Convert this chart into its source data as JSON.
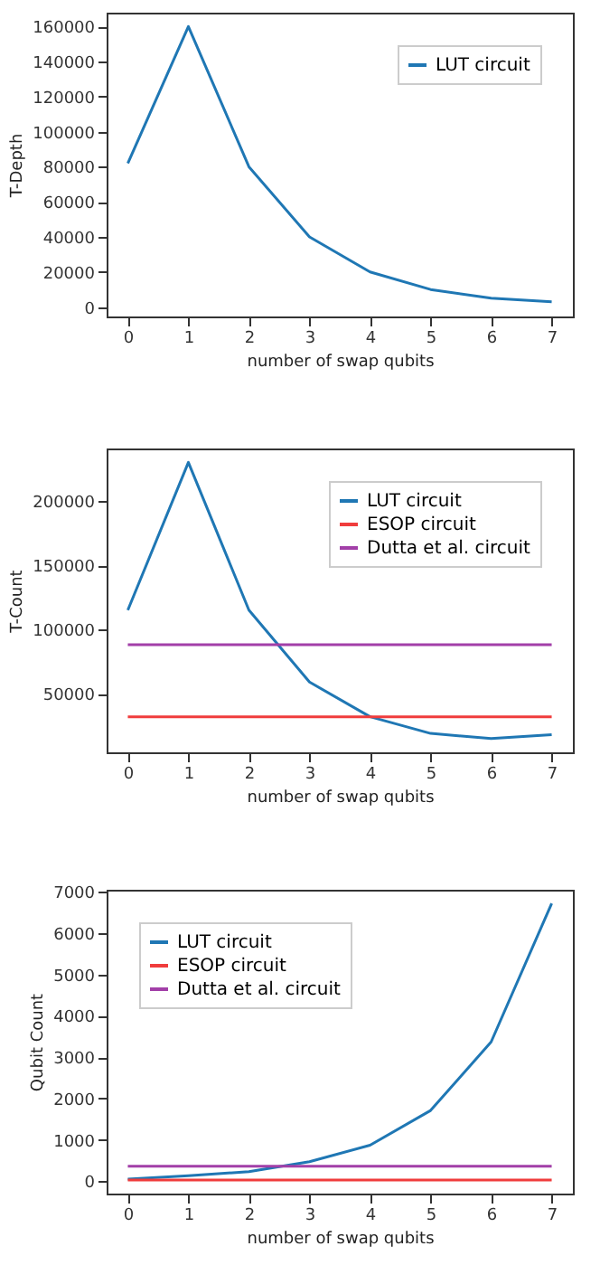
{
  "chart_data": [
    {
      "type": "line",
      "xlabel": "number of swap qubits",
      "ylabel": "T-Depth",
      "x": [
        0,
        1,
        2,
        3,
        4,
        5,
        6,
        7
      ],
      "xlim": [
        -0.35,
        7.35
      ],
      "xticks": [
        0,
        1,
        2,
        3,
        4,
        5,
        6,
        7
      ],
      "ylim": [
        -5400,
        167900
      ],
      "yticks": [
        0,
        20000,
        40000,
        60000,
        80000,
        100000,
        120000,
        140000,
        160000
      ],
      "legend": "top right",
      "series": [
        {
          "name": "LUT circuit",
          "color": "#1f77b4",
          "values": [
            82000,
            160000,
            80000,
            40000,
            20000,
            10000,
            5000,
            3000
          ]
        }
      ]
    },
    {
      "type": "line",
      "xlabel": "number of swap qubits",
      "ylabel": "T-Count",
      "x": [
        0,
        1,
        2,
        3,
        4,
        5,
        6,
        7
      ],
      "xlim": [
        -0.35,
        7.35
      ],
      "xticks": [
        0,
        1,
        2,
        3,
        4,
        5,
        6,
        7
      ],
      "ylim": [
        4300,
        240800
      ],
      "yticks": [
        50000,
        100000,
        150000,
        200000
      ],
      "legend": "top right",
      "series": [
        {
          "name": "LUT circuit",
          "color": "#1f77b4",
          "values": [
            115000,
            230000,
            115000,
            59000,
            32000,
            19000,
            15000,
            18000
          ]
        },
        {
          "name": "ESOP circuit",
          "color": "#f03c3c",
          "values": [
            32000,
            32000,
            32000,
            32000,
            32000,
            32000,
            32000,
            32000
          ]
        },
        {
          "name": "Dutta et al. circuit",
          "color": "#a23fa8",
          "values": [
            88000,
            88000,
            88000,
            88000,
            88000,
            88000,
            88000,
            88000
          ]
        }
      ]
    },
    {
      "type": "line",
      "xlabel": "number of swap qubits",
      "ylabel": "Qubit Count",
      "x": [
        0,
        1,
        2,
        3,
        4,
        5,
        6,
        7
      ],
      "xlim": [
        -0.35,
        7.35
      ],
      "xticks": [
        0,
        1,
        2,
        3,
        4,
        5,
        6,
        7
      ],
      "ylim": [
        -300,
        7050
      ],
      "yticks": [
        0,
        1000,
        2000,
        3000,
        4000,
        5000,
        6000,
        7000
      ],
      "legend": "top left",
      "series": [
        {
          "name": "LUT circuit",
          "color": "#1f77b4",
          "values": [
            50,
            130,
            230,
            470,
            870,
            1710,
            3370,
            6720
          ]
        },
        {
          "name": "ESOP circuit",
          "color": "#f03c3c",
          "values": [
            30,
            30,
            30,
            30,
            30,
            30,
            30,
            30
          ]
        },
        {
          "name": "Dutta et al. circuit",
          "color": "#a23fa8",
          "values": [
            360,
            360,
            360,
            360,
            360,
            360,
            360,
            360
          ]
        }
      ]
    }
  ]
}
